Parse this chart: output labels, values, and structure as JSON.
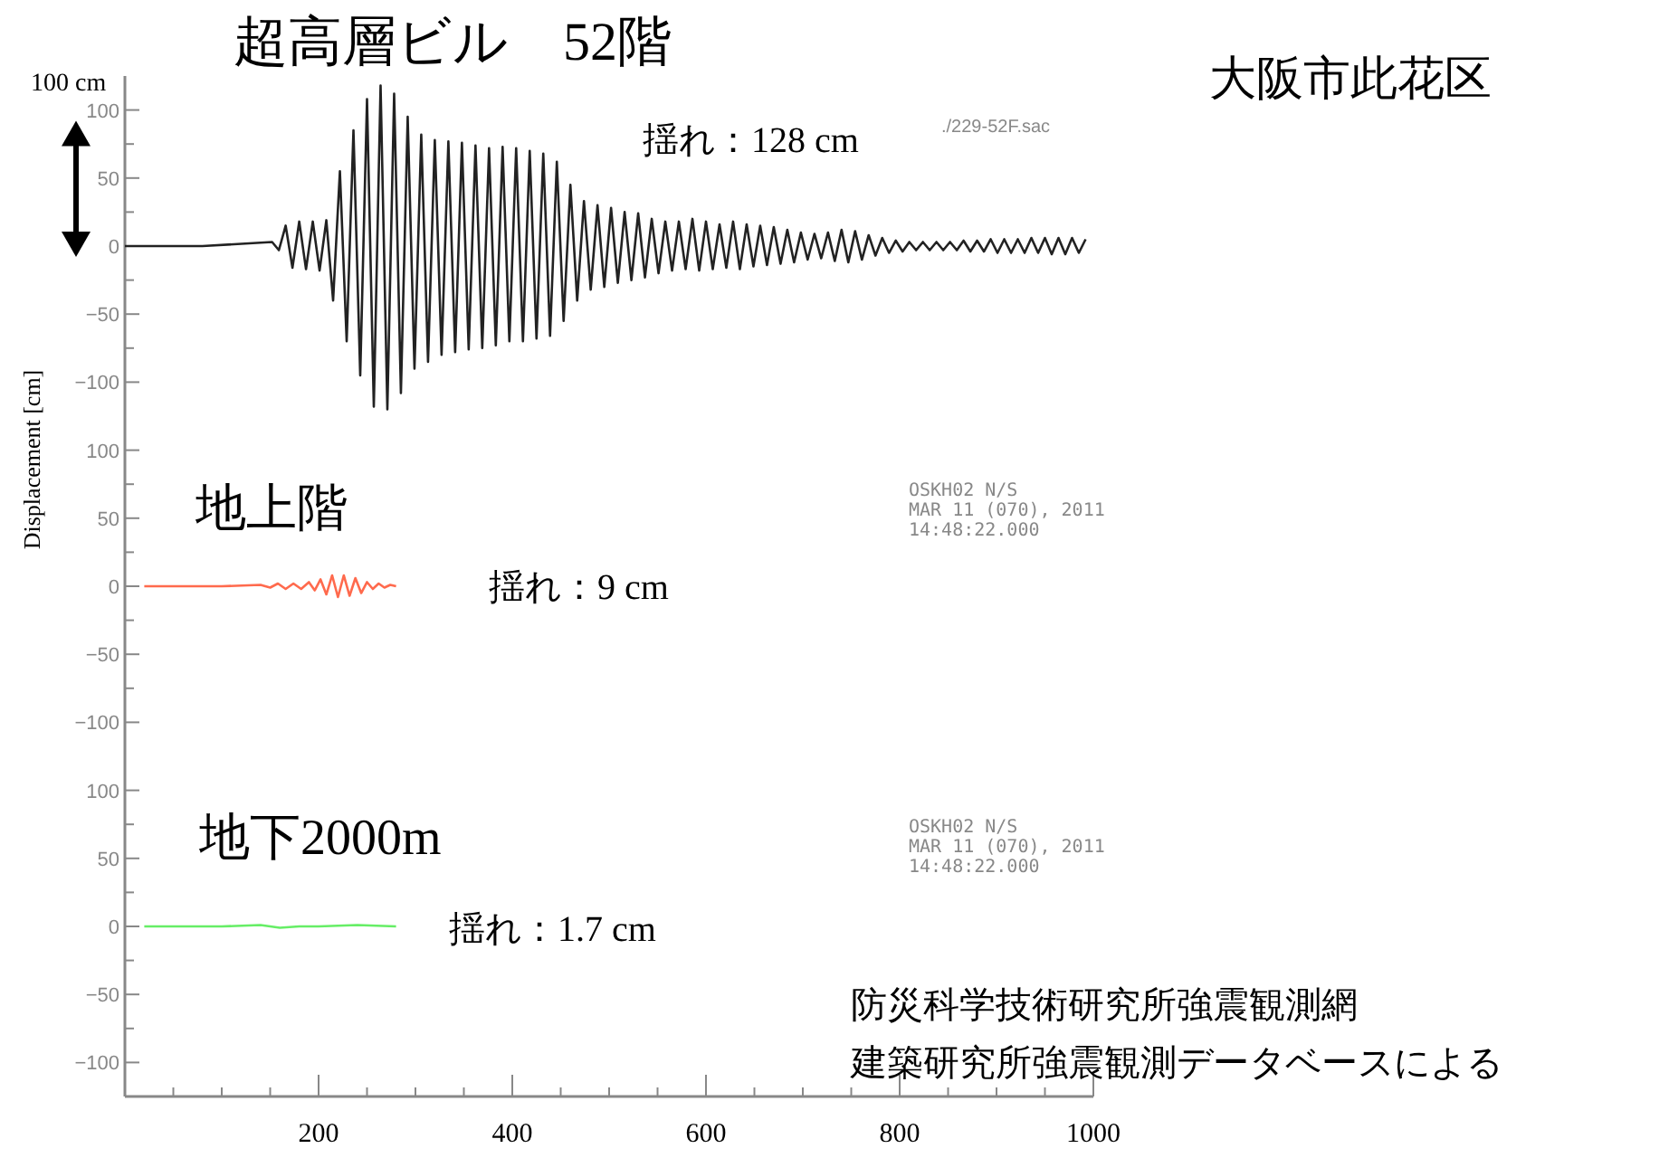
{
  "chart_data": [
    {
      "type": "line",
      "title": "超高層ビル　52階",
      "xlim": [
        0,
        1000
      ],
      "ylim": [
        -125,
        125
      ],
      "tick_labels": "y",
      "yticks": [
        -100,
        {
          "value": -75,
          "label": null
        },
        -50,
        {
          "value": -25,
          "label": null
        },
        0,
        {
          "value": 25,
          "label": null
        },
        50,
        {
          "value": 75,
          "label": null
        },
        100
      ],
      "annotations": [
        "100 cm",
        "揺れ：128 cm",
        "./229-52F.sac",
        "大阪市此花区"
      ],
      "series": [
        {
          "color": "#222222",
          "x": [
            0,
            80,
            152,
            159,
            166,
            173,
            180,
            187,
            194,
            201,
            208,
            215,
            222,
            229,
            236,
            243,
            250,
            257,
            264,
            271,
            278,
            285,
            292,
            299,
            306,
            313,
            320,
            327,
            334,
            341,
            348,
            355,
            362,
            369,
            376,
            383,
            390,
            397,
            404,
            411,
            418,
            425,
            432,
            439,
            446,
            453,
            460,
            467,
            474,
            481,
            488,
            495,
            502,
            509,
            516,
            523,
            530,
            537,
            544,
            551,
            558,
            565,
            572,
            579,
            586,
            593,
            600,
            607,
            614,
            621,
            628,
            635,
            642,
            649,
            656,
            663,
            670,
            677,
            684,
            691,
            698,
            705,
            712,
            719,
            726,
            733,
            740,
            747,
            754,
            761,
            768,
            775,
            782,
            789,
            796,
            803,
            810,
            817,
            824,
            831,
            838,
            845,
            852,
            859,
            866,
            873,
            880,
            887,
            894,
            901,
            908,
            915,
            922,
            929,
            936,
            943,
            950,
            957,
            964,
            971,
            978,
            985,
            992
          ],
          "values": [
            0,
            0,
            3,
            -3,
            15,
            -16,
            18,
            -17,
            18,
            -18,
            19,
            -40,
            55,
            -70,
            85,
            -95,
            108,
            -118,
            118,
            -120,
            112,
            -108,
            95,
            -90,
            82,
            -85,
            78,
            -80,
            77,
            -78,
            76,
            -76,
            74,
            -75,
            72,
            -73,
            73,
            -70,
            72,
            -70,
            70,
            -68,
            68,
            -66,
            62,
            -55,
            45,
            -40,
            33,
            -32,
            30,
            -30,
            28,
            -27,
            25,
            -25,
            24,
            -23,
            20,
            -20,
            18,
            -18,
            18,
            -17,
            20,
            -18,
            18,
            -17,
            16,
            -16,
            18,
            -17,
            16,
            -15,
            15,
            -14,
            14,
            -13,
            12,
            -12,
            10,
            -10,
            9,
            -9,
            10,
            -11,
            12,
            -12,
            11,
            -10,
            8,
            -7,
            6,
            -5,
            4,
            -4,
            3,
            -3,
            3,
            -3,
            3,
            -3,
            3,
            -3,
            4,
            -4,
            4,
            -4,
            5,
            -5,
            5,
            -5,
            5,
            -5,
            6,
            -5,
            6,
            -6,
            6,
            -6,
            6,
            -5,
            5
          ]
        }
      ]
    },
    {
      "type": "line",
      "title": "地上階",
      "ylabel": "Displacement [cm]",
      "xlim": [
        0,
        1000
      ],
      "ylim": [
        -125,
        125
      ],
      "tick_labels": "y",
      "yticks": [
        -100,
        {
          "value": -75,
          "label": null
        },
        -50,
        {
          "value": -25,
          "label": null
        },
        0,
        {
          "value": 25,
          "label": null
        },
        50,
        {
          "value": 75,
          "label": null
        },
        100
      ],
      "annotations": [
        "揺れ：9 cm",
        "OSKH02  N/S\nMAR 11 (070), 2011\n14:48:22.000"
      ],
      "series": [
        {
          "color": "#ff6a4d",
          "x": [
            20,
            100,
            140,
            150,
            158,
            166,
            174,
            182,
            190,
            196,
            202,
            208,
            214,
            220,
            226,
            232,
            238,
            244,
            250,
            256,
            262,
            268,
            274,
            280
          ],
          "values": [
            0,
            0,
            1,
            -1,
            2,
            -2,
            2,
            -2,
            3,
            -3,
            5,
            -6,
            8,
            -8,
            8,
            -7,
            6,
            -5,
            3,
            -2,
            2,
            -1,
            1,
            0
          ]
        }
      ]
    },
    {
      "type": "line",
      "title": "地下2000m",
      "xlim": [
        0,
        1000
      ],
      "ylim": [
        -125,
        125
      ],
      "xticks": [
        {
          "value": 50,
          "label": null
        },
        {
          "value": 100,
          "label": null
        },
        {
          "value": 150,
          "label": null
        },
        200,
        {
          "value": 250,
          "label": null
        },
        {
          "value": 300,
          "label": null
        },
        {
          "value": 350,
          "label": null
        },
        400,
        {
          "value": 450,
          "label": null
        },
        {
          "value": 500,
          "label": null
        },
        {
          "value": 550,
          "label": null
        },
        600,
        {
          "value": 650,
          "label": null
        },
        {
          "value": 700,
          "label": null
        },
        {
          "value": 750,
          "label": null
        },
        800,
        {
          "value": 850,
          "label": null
        },
        {
          "value": 900,
          "label": null
        },
        {
          "value": 950,
          "label": null
        },
        1000
      ],
      "yticks": [
        -100,
        {
          "value": -75,
          "label": null
        },
        -50,
        {
          "value": -25,
          "label": null
        },
        0,
        {
          "value": 25,
          "label": null
        },
        50,
        {
          "value": 75,
          "label": null
        },
        100
      ],
      "annotations": [
        "揺れ：1.7 cm",
        "OSKH02  N/S\nMAR 11 (070), 2011\n14:48:22.000",
        "防災科学技術研究所強震観測網",
        "建築研究所強震観測データベースによる"
      ],
      "series": [
        {
          "color": "#66ee66",
          "x": [
            20,
            60,
            100,
            140,
            160,
            180,
            200,
            240,
            280
          ],
          "values": [
            0,
            0,
            0,
            1,
            -1,
            0,
            0,
            1,
            0
          ]
        }
      ]
    }
  ]
}
